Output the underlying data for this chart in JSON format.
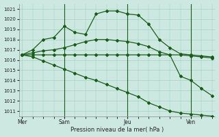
{
  "background_color": "#cce8e0",
  "plot_bg_color": "#cce8e0",
  "grid_color": "#99ccbb",
  "line_color": "#1a5c1a",
  "ylim": [
    1010.5,
    1021.5
  ],
  "yticks": [
    1011,
    1012,
    1013,
    1014,
    1015,
    1016,
    1017,
    1018,
    1019,
    1020,
    1021
  ],
  "xlabel": "Pression niveau de la mer( hPa )",
  "day_labels": [
    "Mer",
    "Sam",
    "Jeu",
    "Ven"
  ],
  "day_positions": [
    0,
    4,
    10,
    16
  ],
  "vline_positions": [
    4,
    10,
    16
  ],
  "series1": [
    1016.5,
    1017.0,
    1018.0,
    1018.2,
    1019.3,
    1018.7,
    1018.5,
    1020.5,
    1020.8,
    1020.8,
    1020.5,
    1020.4,
    1019.5,
    1018.0,
    1017.2,
    1016.6,
    1016.5,
    1016.4,
    1016.3
  ],
  "series2": [
    1016.5,
    1016.5,
    1016.5,
    1016.5,
    1016.5,
    1016.5,
    1016.5,
    1016.5,
    1016.5,
    1016.5,
    1016.5,
    1016.5,
    1016.5,
    1016.5,
    1016.5,
    1016.5,
    1016.4,
    1016.3,
    1016.2
  ],
  "series3": [
    1016.5,
    1016.3,
    1015.9,
    1015.5,
    1015.1,
    1014.7,
    1014.3,
    1014.0,
    1013.6,
    1013.2,
    1012.8,
    1012.4,
    1011.8,
    1011.4,
    1011.0,
    1010.8,
    1010.7,
    1010.6,
    1010.5
  ],
  "series4": [
    1016.5,
    1016.7,
    1016.9,
    1017.0,
    1017.2,
    1017.5,
    1017.8,
    1018.0,
    1018.0,
    1017.9,
    1017.8,
    1017.6,
    1017.3,
    1016.8,
    1016.5,
    1014.4,
    1014.0,
    1013.2,
    1012.5
  ],
  "n_points": 19,
  "marker": "D",
  "marker_size": 2.0,
  "line_width": 0.9
}
